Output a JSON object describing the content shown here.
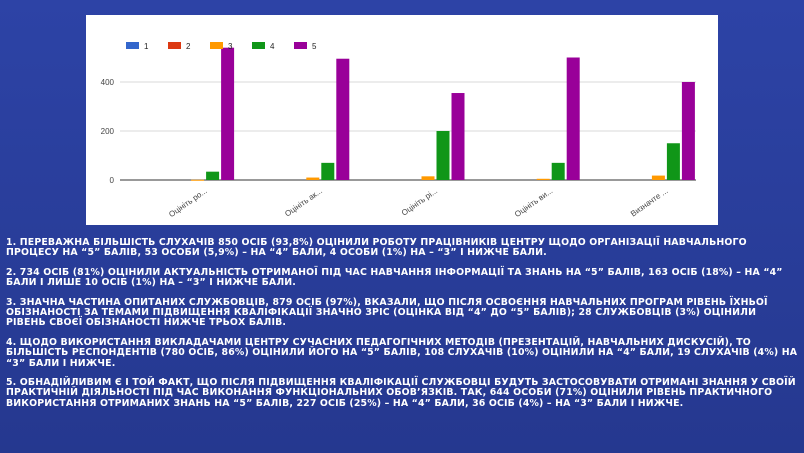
{
  "chart_data": {
    "type": "bar",
    "categories": [
      "Оцініть ро...",
      "Оцініть ак...",
      "Оцініть рі...",
      "Оцініть ви...",
      "Визначте ..."
    ],
    "series": [
      {
        "name": "1",
        "color": "#3366cc",
        "values": [
          0,
          0,
          0,
          0,
          0
        ]
      },
      {
        "name": "2",
        "color": "#dc3912",
        "values": [
          0,
          0,
          0,
          0,
          0
        ]
      },
      {
        "name": "3",
        "color": "#ff9900",
        "values": [
          1,
          10,
          15,
          5,
          18
        ]
      },
      {
        "name": "4",
        "color": "#109618",
        "values": [
          34,
          70,
          200,
          70,
          150
        ]
      },
      {
        "name": "5",
        "color": "#990099",
        "values": [
          540,
          495,
          355,
          500,
          400
        ]
      }
    ],
    "yticks": [
      0,
      200,
      400
    ],
    "ylim": [
      0,
      600
    ],
    "grid": true,
    "legend_position": "top-left"
  },
  "notes": [
    "1. ПЕРЕВАЖНА БІЛЬШІСТЬ СЛУХАЧІВ 850 ОСІБ (93,8%) ОЦІНИЛИ РОБОТУ ПРАЦІВНИКІВ ЦЕНТРУ ЩОДО ОРГАНІЗАЦІЇ НАВЧАЛЬНОГО ПРОЦЕСУ НА “5” БАЛІВ, 53 ОСОБИ (5,9%) – НА “4” БАЛИ, 4 ОСОБИ (1%) НА – “3” І НИЖЧЕ БАЛИ.",
    "2. 734 ОСІБ (81%) ОЦІНИЛИ АКТУАЛЬНІСТЬ ОТРИМАНОЇ ПІД ЧАС НАВЧАННЯ ІНФОРМАЦІЇ ТА ЗНАНЬ НА “5” БАЛІВ, 163 ОСІБ (18%) – НА “4” БАЛИ І ЛИШЕ 10 ОСІБ (1%) НА – “3” І НИЖЧЕ БАЛИ.",
    "3. ЗНАЧНА ЧАСТИНА ОПИТАНИХ СЛУЖБОВЦІВ, 879 ОСІБ (97%), ВКАЗАЛИ, ЩО ПІСЛЯ ОСВОЄННЯ НАВЧАЛЬНИХ ПРОГРАМ РІВЕНЬ ЇХНЬОЇ ОБІЗНАНОСТІ ЗА ТЕМАМИ ПІДВИЩЕННЯ КВАЛІФІКАЦІЇ ЗНАЧНО ЗРІС (ОЦІНКА ВІД “4” ДО “5” БАЛІВ); 28 СЛУЖБОВЦІВ (3%) ОЦІНИЛИ РІВЕНЬ СВОЄЇ ОБІЗНАНОСТІ НИЖЧЕ ТРЬОХ БАЛІВ.",
    "4. ЩОДО ВИКОРИСТАННЯ ВИКЛАДАЧАМИ ЦЕНТРУ СУЧАСНИХ ПЕДАГОГІЧНИХ МЕТОДІВ (ПРЕЗЕНТАЦІЙ, НАВЧАЛЬНИХ ДИСКУСІЙ), ТО БІЛЬШІСТЬ РЕСПОНДЕНТІВ (780 ОСІБ, 86%) ОЦІНИЛИ ЙОГО НА “5” БАЛІВ, 108 СЛУХАЧІВ (10%) ОЦІНИЛИ НА “4” БАЛИ, 19 СЛУХАЧІВ (4%)  НА “3” БАЛИ І НИЖЧЕ.",
    "5. ОБНАДІЙЛИВИМ Є І ТОЙ ФАКТ, ЩО ПІСЛЯ ПІДВИЩЕННЯ КВАЛІФІКАЦІЇ СЛУЖБОВЦІ БУДУТЬ ЗАСТОСОВУВАТИ ОТРИМАНІ ЗНАННЯ У СВОЇЙ ПРАКТИЧНІЙ ДІЯЛЬНОСТІ ПІД ЧАС ВИКОНАННЯ ФУНКЦІОНАЛЬНИХ ОБОВ’ЯЗКІВ. ТАК, 644 ОСОБИ (71%) ОЦІНИЛИ РІВЕНЬ ПРАКТИЧНОГО ВИКОРИСТАННЯ ОТРИМАНИХ ЗНАНЬ НА “5” БАЛІВ, 227 ОСІБ (25%) – НА “4” БАЛИ, 36 ОСІБ (4%) – НА “3” БАЛИ І НИЖЧЕ."
  ]
}
